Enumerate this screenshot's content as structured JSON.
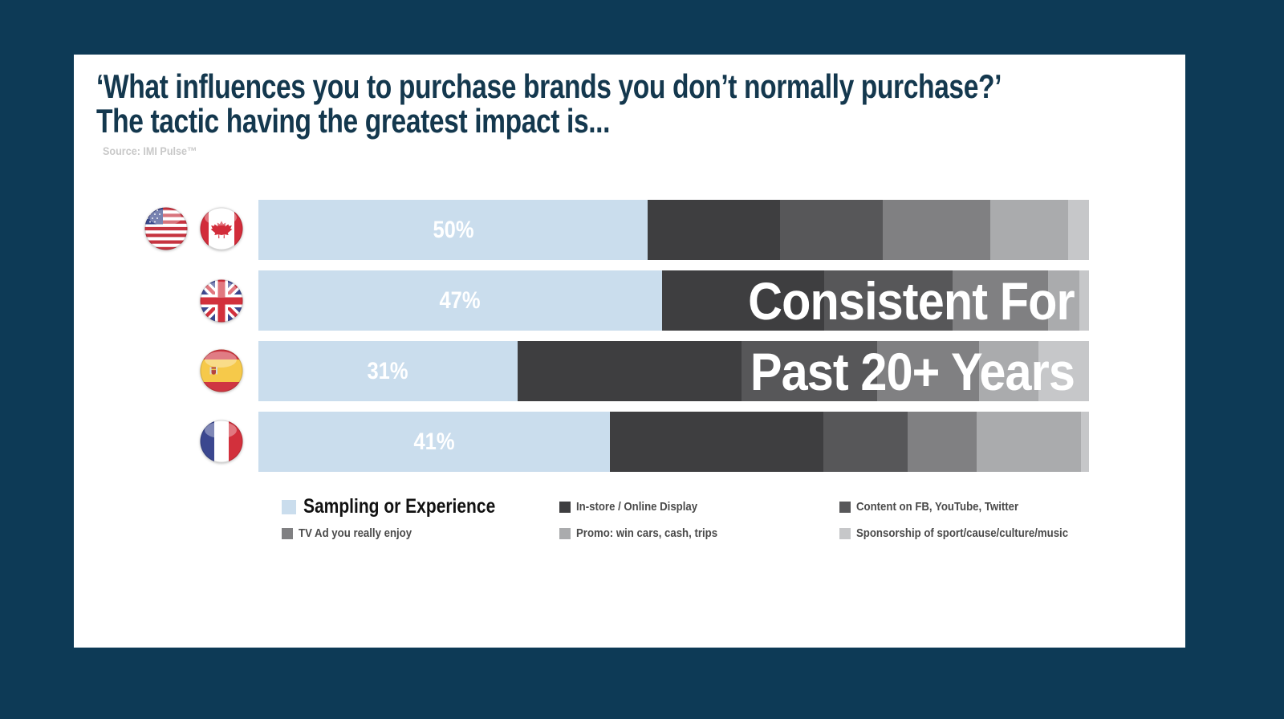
{
  "page": {
    "background_color": "#0d3a56",
    "card_color": "#ffffff"
  },
  "header": {
    "title_line1": "‘What influences you to purchase brands you don’t normally purchase?’",
    "title_line2": "The tactic having the greatest impact is...",
    "title_color": "#14384e",
    "source": "Source: IMI Pulse™"
  },
  "chart_data": {
    "type": "bar",
    "orientation": "horizontal-stacked",
    "unit": "%",
    "grid": false,
    "legend_position": "bottom",
    "categories": [
      "USA / Canada",
      "UK",
      "Spain",
      "France"
    ],
    "bar_labels": [
      "50%",
      "47%",
      "31%",
      "41%"
    ],
    "series": [
      {
        "name": "Sampling or Experience",
        "color": "#cadded",
        "values": [
          50,
          47,
          31,
          41
        ]
      },
      {
        "name": "In-store / Online Display",
        "color": "#3e3e40",
        "values": [
          16,
          20,
          27,
          26
        ]
      },
      {
        "name": "Content on FB, YouTube, Twitter",
        "color": "#575759",
        "values": [
          12,
          15,
          16,
          10
        ]
      },
      {
        "name": "TV Ad you really enjoy",
        "color": "#808082",
        "values": [
          13,
          11,
          12,
          8
        ]
      },
      {
        "name": "Promo: win cars, cash, trips",
        "color": "#aaabad",
        "values": [
          9,
          4,
          7,
          13
        ]
      },
      {
        "name": "Sponsorship of sport/cause/culture/music",
        "color": "#c6c7c9",
        "values": [
          2,
          1,
          6,
          1
        ]
      }
    ],
    "render_widths_pct": [
      [
        46.9,
        15.9,
        12.4,
        12.9,
        9.4,
        2.5
      ],
      [
        48.6,
        19.5,
        15.5,
        11.5,
        3.7,
        1.2
      ],
      [
        31.2,
        27.0,
        16.3,
        12.3,
        7.1,
        6.1
      ],
      [
        42.3,
        25.7,
        10.2,
        8.3,
        12.5,
        1.0
      ]
    ],
    "annotation": {
      "line1": "Consistent For",
      "line2": "Past 20+ Years",
      "color": "#ffffff"
    }
  }
}
